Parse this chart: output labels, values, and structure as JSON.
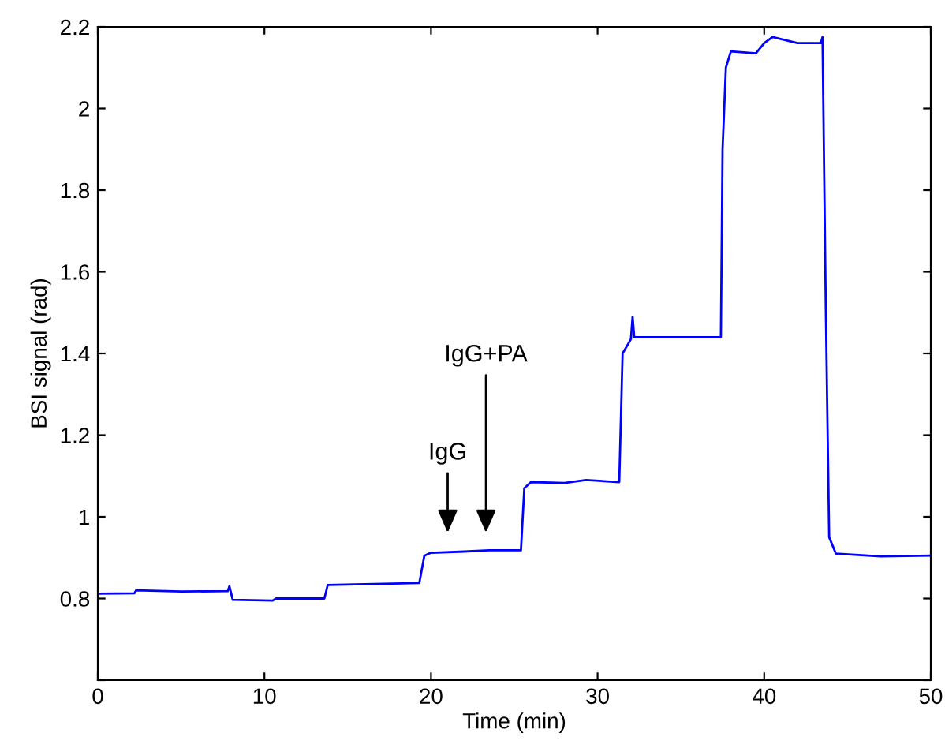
{
  "chart_data": {
    "type": "line",
    "xlabel": "Time (min)",
    "ylabel": "BSI signal (rad)",
    "xlim": [
      0,
      50
    ],
    "ylim": [
      0.6,
      2.2
    ],
    "xticks": [
      0,
      10,
      20,
      30,
      40,
      50
    ],
    "yticks": [
      {
        "value": 0.6,
        "label": null
      },
      0.8,
      1,
      1.2,
      1.4,
      1.6,
      1.8,
      2,
      2.2
    ],
    "grid": false,
    "legend": false,
    "marker": "none",
    "line_style": "solid",
    "series": [
      {
        "color": "#0000ff",
        "x": [
          0,
          2.2,
          2.3,
          5,
          7.8,
          7.9,
          8.1,
          10.5,
          10.7,
          13.6,
          13.8,
          16,
          19.3,
          19.6,
          20,
          22,
          23.5,
          25.4,
          25.6,
          26,
          28,
          29.3,
          31.3,
          31.5,
          32,
          32.1,
          32.2,
          35,
          37.4,
          37.5,
          37.7,
          38,
          39.5,
          40,
          40.5,
          42,
          43.4,
          43.5,
          43.7,
          43.9,
          44.3,
          47,
          50
        ],
        "values": [
          0.812,
          0.813,
          0.82,
          0.817,
          0.818,
          0.83,
          0.797,
          0.795,
          0.8,
          0.8,
          0.833,
          0.835,
          0.838,
          0.905,
          0.912,
          0.915,
          0.918,
          0.918,
          1.07,
          1.085,
          1.083,
          1.09,
          1.085,
          1.4,
          1.435,
          1.49,
          1.44,
          1.44,
          1.44,
          1.9,
          2.1,
          2.14,
          2.135,
          2.16,
          2.175,
          2.16,
          2.16,
          2.175,
          1.5,
          0.95,
          0.91,
          0.903,
          0.905
        ]
      }
    ],
    "annotations": [
      "IgG",
      "IgG+PA"
    ]
  }
}
